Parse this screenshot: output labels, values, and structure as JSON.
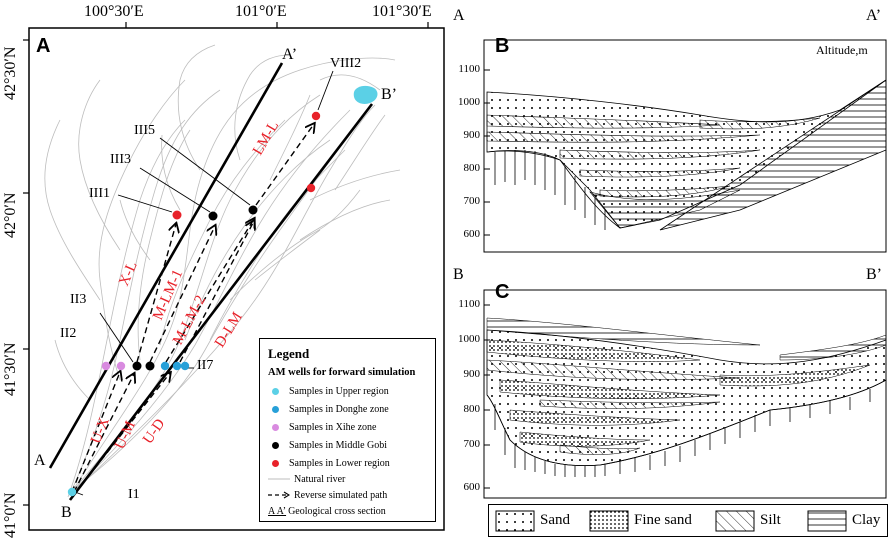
{
  "map": {
    "panel_label": "A",
    "top_coords": [
      "100°30′E",
      "101°0′E",
      "101°30′E"
    ],
    "left_coords": [
      "42°30′N",
      "42°0′N",
      "41°30′N",
      "41°0′N"
    ],
    "section_labels": {
      "a": "A",
      "a_prime": "A’",
      "b": "B",
      "b_prime": "B’"
    },
    "site_labels": {
      "viii2": "VIII2",
      "iii5": "III5",
      "iii3": "III3",
      "iii1": "III1",
      "ii3": "II3",
      "ii2": "II2",
      "ii7": "II7",
      "i1": "I1"
    },
    "path_labels": {
      "lm_l": "LM-L",
      "x_l": "X-L",
      "m_lm_1": "M-LM-1",
      "m_lm_2": "M-LM-2",
      "d_lm": "D-LM",
      "u_x": "U-X",
      "u_m": "U-M",
      "u_d": "U-D"
    },
    "colors": {
      "upper": "#5bd0e6",
      "donghe": "#27a0d8",
      "xihe": "#d98be0",
      "middle": "#000000",
      "lower": "#e8222a",
      "path_label": "#e8222a",
      "river": "#bdbdbd"
    }
  },
  "legend": {
    "title": "Legend",
    "subtitle": "AM wells for forward simulation",
    "items": [
      {
        "label": "Samples in Upper region",
        "color": "#5bd0e6"
      },
      {
        "label": "Samples in Donghe zone",
        "color": "#27a0d8"
      },
      {
        "label": "Samples in Xihe zone",
        "color": "#d98be0"
      },
      {
        "label": "Samples in Middle Gobi",
        "color": "#000000"
      },
      {
        "label": "Samples in Lower region",
        "color": "#e8222a"
      }
    ],
    "river_label": "Natural river",
    "path_label": "Reverse simulated path",
    "section_label": "Geological cross section",
    "section_symbol": "A  A’"
  },
  "section_b": {
    "panel_label": "B",
    "start": "A",
    "end": "A’",
    "axis_title": "Altitude,m",
    "ticks": [
      "1100",
      "1000",
      "900",
      "800",
      "700",
      "600"
    ]
  },
  "section_c": {
    "panel_label": "C",
    "start": "B",
    "end": "B’",
    "ticks": [
      "1100",
      "1000",
      "900",
      "800",
      "700",
      "600"
    ]
  },
  "lithology_legend": [
    "Sand",
    "Fine sand",
    "Silt",
    "Clay"
  ]
}
